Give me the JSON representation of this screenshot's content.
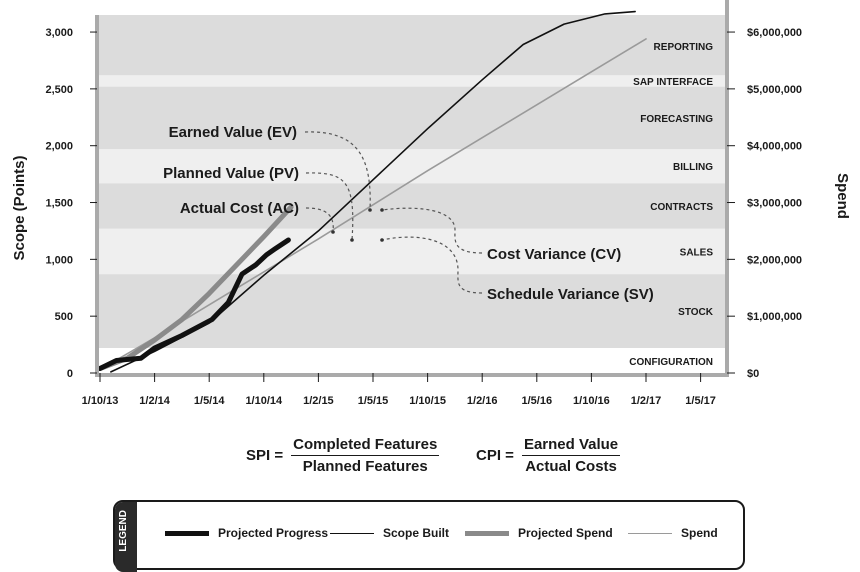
{
  "chart_data": {
    "type": "line",
    "x_ticks": [
      "1/10/13",
      "1/2/14",
      "1/5/14",
      "1/10/14",
      "1/2/15",
      "1/5/15",
      "1/10/15",
      "1/2/16",
      "1/5/16",
      "1/10/16",
      "1/2/17",
      "1/5/17"
    ],
    "y_left": {
      "label": "Scope (Points)",
      "ticks": [
        "0",
        "500",
        "1,000",
        "1,500",
        "2,000",
        "2,500",
        "3,000"
      ],
      "range": [
        0,
        3150
      ]
    },
    "y_right": {
      "label": "Spend",
      "ticks": [
        "$0",
        "$1,000,000",
        "$2,000,000",
        "$3,000,000",
        "$4,000,000",
        "$5,000,000",
        "$6,000,000"
      ],
      "range": [
        0,
        6300000
      ]
    },
    "bands": [
      {
        "label": "CONFIGURATION",
        "from": 0,
        "to": 220,
        "shade": "#ffffff"
      },
      {
        "label": "STOCK",
        "from": 220,
        "to": 870,
        "shade": "#dcdcdc"
      },
      {
        "label": "SALES",
        "from": 870,
        "to": 1270,
        "shade": "#efefef"
      },
      {
        "label": "CONTRACTS",
        "from": 1270,
        "to": 1670,
        "shade": "#dcdcdc"
      },
      {
        "label": "BILLING",
        "from": 1670,
        "to": 1970,
        "shade": "#efefef"
      },
      {
        "label": "FORECASTING",
        "from": 1970,
        "to": 2520,
        "shade": "#dcdcdc"
      },
      {
        "label": "SAP INTERFACE",
        "from": 2520,
        "to": 2620,
        "shade": "#efefef"
      },
      {
        "label": "REPORTING",
        "from": 2620,
        "to": 3150,
        "shade": "#dcdcdc"
      }
    ],
    "series": [
      {
        "name": "Projected Progress",
        "color": "#111111",
        "width": 5,
        "x": [
          0,
          0.3,
          0.75,
          1.0,
          1.5,
          2.05,
          2.35,
          2.6,
          2.85,
          3.05,
          3.2,
          3.45
        ],
        "y": [
          40,
          110,
          130,
          220,
          330,
          470,
          620,
          870,
          950,
          1040,
          1090,
          1170
        ]
      },
      {
        "name": "Scope Built",
        "color": "#111111",
        "width": 1.6,
        "x": [
          0.2,
          1.0,
          2.0,
          3.0,
          4.0,
          5.0,
          6.0,
          7.0,
          7.75,
          8.5,
          9.25,
          9.8
        ],
        "y": [
          10,
          190,
          440,
          860,
          1250,
          1700,
          2150,
          2580,
          2890,
          3070,
          3160,
          3180
        ]
      },
      {
        "name": "Projected Spend",
        "color": "#8a8a8a",
        "width": 5,
        "x": [
          0,
          0.5,
          1.0,
          1.5,
          2.0,
          2.5,
          3.0,
          3.5
        ],
        "y": [
          40,
          130,
          290,
          470,
          700,
          950,
          1200,
          1460
        ]
      },
      {
        "name": "Spend",
        "color": "#9a9a9a",
        "width": 1.6,
        "x": [
          0,
          1.0,
          2.0,
          3.0,
          4.0,
          5.0,
          6.0,
          7.0,
          8.0,
          9.0,
          10.0
        ],
        "y": [
          30,
          310,
          600,
          890,
          1180,
          1480,
          1780,
          2070,
          2360,
          2650,
          2940
        ]
      }
    ],
    "annotations": [
      "Earned Value (EV)",
      "Planned Value (PV)",
      "Actual Cost (AC)",
      "Cost Variance (CV)",
      "Schedule Variance (SV)"
    ]
  },
  "formulas": {
    "spi": {
      "lhs": "SPI =",
      "num": "Completed Features",
      "den": "Planned Features"
    },
    "cpi": {
      "lhs": "CPI =",
      "num": "Earned Value",
      "den": "Actual Costs"
    }
  },
  "legend": {
    "title": "LEGEND",
    "items": [
      {
        "label": "Projected Progress",
        "color": "#111111",
        "width": 5
      },
      {
        "label": "Scope Built",
        "color": "#111111",
        "width": 1.6
      },
      {
        "label": "Projected Spend",
        "color": "#8a8a8a",
        "width": 5
      },
      {
        "label": "Spend",
        "color": "#9a9a9a",
        "width": 1.6
      }
    ]
  }
}
